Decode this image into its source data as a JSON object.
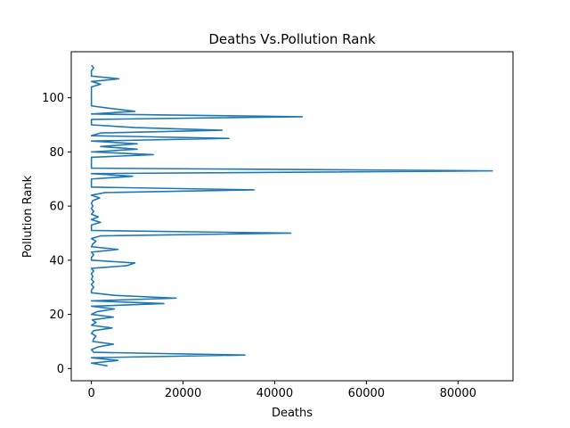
{
  "chart_data": {
    "type": "line",
    "title": "Deaths Vs.Pollution Rank",
    "xlabel": "Deaths",
    "ylabel": "Pollution Rank",
    "xlim": [
      -4400,
      92000
    ],
    "ylim": [
      -4.5,
      117
    ],
    "xticks": [
      0,
      20000,
      40000,
      60000,
      80000
    ],
    "xtick_labels": [
      "0",
      "20000",
      "40000",
      "60000",
      "80000"
    ],
    "yticks": [
      0,
      20,
      40,
      60,
      80,
      100
    ],
    "ytick_labels": [
      "0",
      "20",
      "40",
      "60",
      "80",
      "100"
    ],
    "grid": false,
    "legend": "none",
    "colors": {
      "line": "#1f77b4",
      "axes": "#000000",
      "background": "#ffffff"
    },
    "series": [
      {
        "points": [
          [
            3500,
            1
          ],
          [
            0,
            2
          ],
          [
            5800,
            3
          ],
          [
            0,
            4
          ],
          [
            33500,
            5
          ],
          [
            500,
            6
          ],
          [
            0,
            7
          ],
          [
            1500,
            8
          ],
          [
            4800,
            9
          ],
          [
            300,
            10
          ],
          [
            500,
            11
          ],
          [
            1000,
            12
          ],
          [
            0,
            13
          ],
          [
            500,
            14
          ],
          [
            4500,
            15
          ],
          [
            0,
            16
          ],
          [
            1000,
            17
          ],
          [
            200,
            18
          ],
          [
            4800,
            19
          ],
          [
            0,
            20
          ],
          [
            1200,
            21
          ],
          [
            5000,
            22
          ],
          [
            0,
            23
          ],
          [
            15800,
            24
          ],
          [
            0,
            25
          ],
          [
            18500,
            26
          ],
          [
            5200,
            27
          ],
          [
            0,
            28
          ],
          [
            0,
            29
          ],
          [
            500,
            30
          ],
          [
            0,
            31
          ],
          [
            500,
            32
          ],
          [
            0,
            33
          ],
          [
            300,
            34
          ],
          [
            0,
            35
          ],
          [
            500,
            36
          ],
          [
            0,
            37
          ],
          [
            7800,
            38
          ],
          [
            9500,
            39
          ],
          [
            0,
            40
          ],
          [
            0,
            41
          ],
          [
            500,
            42
          ],
          [
            0,
            43
          ],
          [
            5800,
            44
          ],
          [
            0,
            45
          ],
          [
            300,
            46
          ],
          [
            1000,
            47
          ],
          [
            0,
            48
          ],
          [
            2000,
            49
          ],
          [
            43500,
            50
          ],
          [
            0,
            51
          ],
          [
            0,
            52
          ],
          [
            0,
            53
          ],
          [
            2000,
            54
          ],
          [
            0,
            55
          ],
          [
            1500,
            56
          ],
          [
            0,
            57
          ],
          [
            500,
            58
          ],
          [
            0,
            59
          ],
          [
            300,
            60
          ],
          [
            0,
            61
          ],
          [
            300,
            62
          ],
          [
            1800,
            63
          ],
          [
            0,
            64
          ],
          [
            3000,
            65
          ],
          [
            35500,
            66
          ],
          [
            0,
            67
          ],
          [
            0,
            68
          ],
          [
            0,
            69
          ],
          [
            0,
            70
          ],
          [
            9000,
            71
          ],
          [
            0,
            72
          ],
          [
            87500,
            73
          ],
          [
            0,
            74
          ],
          [
            0,
            75
          ],
          [
            0,
            76
          ],
          [
            0,
            77
          ],
          [
            0,
            78
          ],
          [
            13500,
            79
          ],
          [
            0,
            80
          ],
          [
            10000,
            81
          ],
          [
            2000,
            82
          ],
          [
            10000,
            83
          ],
          [
            0,
            84
          ],
          [
            30000,
            85
          ],
          [
            0,
            86
          ],
          [
            2000,
            87
          ],
          [
            28500,
            88
          ],
          [
            9500,
            89
          ],
          [
            0,
            90
          ],
          [
            0,
            91
          ],
          [
            0,
            92
          ],
          [
            46000,
            93
          ],
          [
            0,
            94
          ],
          [
            9500,
            95
          ],
          [
            4500,
            96
          ],
          [
            0,
            97
          ],
          [
            0,
            98
          ],
          [
            0,
            99
          ],
          [
            0,
            100
          ],
          [
            0,
            101
          ],
          [
            0,
            102
          ],
          [
            0,
            103
          ],
          [
            0,
            104
          ],
          [
            2000,
            105
          ],
          [
            0,
            106
          ],
          [
            6000,
            107
          ],
          [
            0,
            108
          ],
          [
            0,
            109
          ],
          [
            0,
            110
          ],
          [
            500,
            111
          ],
          [
            0,
            112
          ]
        ]
      }
    ]
  }
}
